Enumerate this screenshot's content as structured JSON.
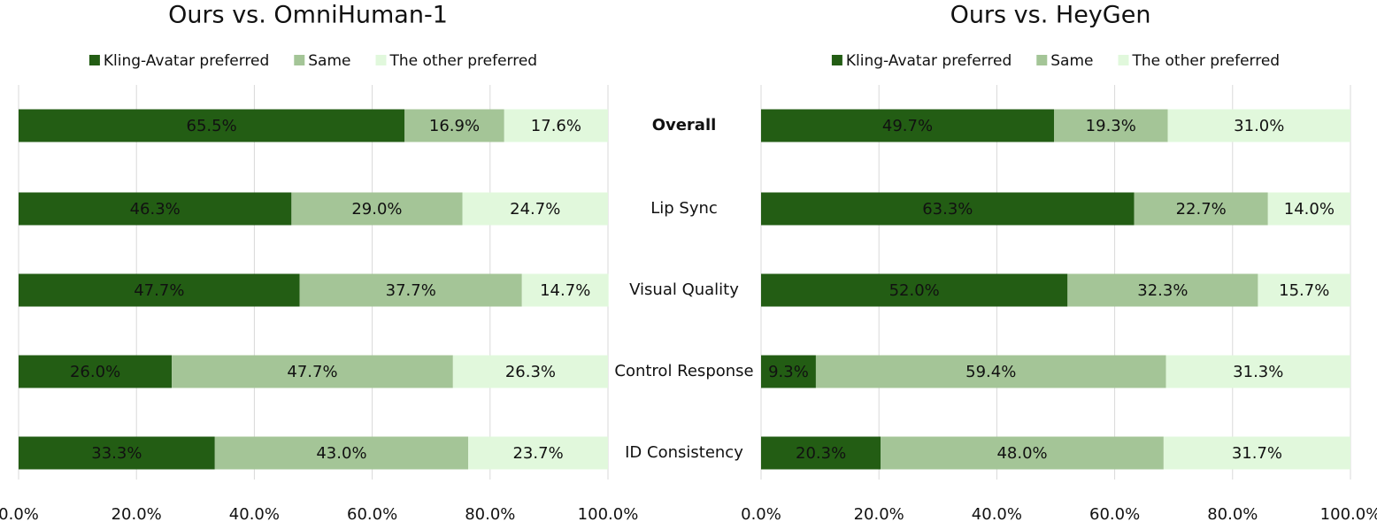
{
  "chart_data": [
    {
      "type": "bar",
      "orientation": "horizontal",
      "stacked": true,
      "title": "Ours vs. OmniHuman-1",
      "categories": [
        null,
        null,
        null,
        null,
        null
      ],
      "series": [
        {
          "name": "Kling-Avatar preferred",
          "color": "#235d14",
          "values": [
            65.5,
            46.3,
            47.7,
            26.0,
            33.3
          ],
          "value_labels": [
            "65.5%",
            "46.3%",
            "47.7%",
            "26.0%",
            "33.3%"
          ]
        },
        {
          "name": "Same",
          "color": "#a4c597",
          "values": [
            16.9,
            29.0,
            37.7,
            47.7,
            43.0
          ],
          "value_labels": [
            "16.9%",
            "29.0%",
            "37.7%",
            "47.7%",
            "43.0%"
          ]
        },
        {
          "name": "The other preferred",
          "color": "#e1f8dc",
          "values": [
            17.6,
            24.7,
            14.7,
            26.3,
            23.7
          ],
          "value_labels": [
            "17.6%",
            "24.7%",
            "14.7%",
            "26.3%",
            "23.7%"
          ]
        }
      ],
      "xlim": [
        0,
        100
      ],
      "xticks": [
        {
          "value": 0,
          "label": "0.0%"
        },
        {
          "value": 20,
          "label": "20.0%"
        },
        {
          "value": 40,
          "label": "40.0%"
        },
        {
          "value": 60,
          "label": "60.0%"
        },
        {
          "value": 80,
          "label": "80.0%"
        },
        {
          "value": 100,
          "label": "100.0%"
        }
      ],
      "grid": true,
      "legend": "top"
    },
    {
      "type": "bar",
      "orientation": "horizontal",
      "stacked": true,
      "title": "Ours vs. HeyGen",
      "categories": [
        "Overall",
        "Lip Sync",
        "Visual Quality",
        "Control Response",
        "ID Consistency"
      ],
      "series": [
        {
          "name": "Kling-Avatar preferred",
          "color": "#235d14",
          "values": [
            49.7,
            63.3,
            52.0,
            9.3,
            20.3
          ],
          "value_labels": [
            "49.7%",
            "63.3%",
            "52.0%",
            "9.3%",
            "20.3%"
          ]
        },
        {
          "name": "Same",
          "color": "#a4c597",
          "values": [
            19.3,
            22.7,
            32.3,
            59.4,
            48.0
          ],
          "value_labels": [
            "19.3%",
            "22.7%",
            "32.3%",
            "59.4%",
            "48.0%"
          ]
        },
        {
          "name": "The other preferred",
          "color": "#e1f8dc",
          "values": [
            31.0,
            14.0,
            15.7,
            31.3,
            31.7
          ],
          "value_labels": [
            "31.0%",
            "14.0%",
            "15.7%",
            "31.3%",
            "31.7%"
          ]
        }
      ],
      "xlim": [
        0,
        100
      ],
      "xticks": [
        {
          "value": 0,
          "label": "0.0%"
        },
        {
          "value": 20,
          "label": "20.0%"
        },
        {
          "value": 40,
          "label": "40.0%"
        },
        {
          "value": 60,
          "label": "60.0%"
        },
        {
          "value": 80,
          "label": "80.0%"
        },
        {
          "value": 100,
          "label": "100.0%"
        }
      ],
      "grid": true,
      "legend": "top"
    }
  ]
}
